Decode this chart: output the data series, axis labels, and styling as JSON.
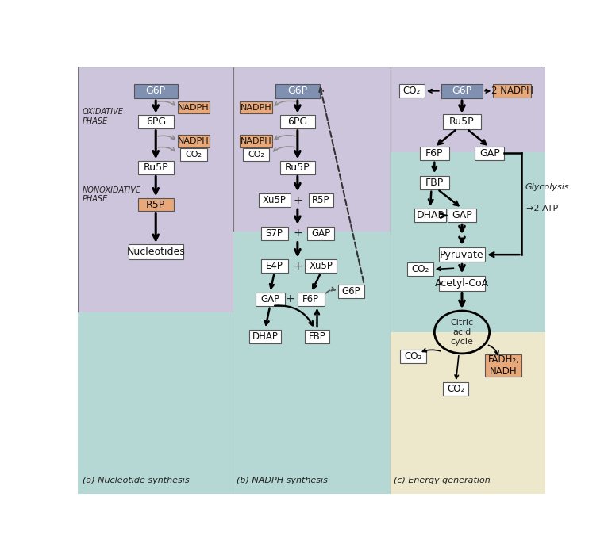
{
  "bg_purple": "#ccc5dc",
  "bg_teal": "#b5d8d5",
  "bg_yellow": "#ede8cc",
  "box_orange": "#e8a87a",
  "box_white": "#ffffff",
  "box_blue_gray": "#8090b0",
  "text_dark": "#222222",
  "border_color": "#666666",
  "panel_a_label": "(a) Nucleotide synthesis",
  "panel_b_label": "(b) NADPH synthesis",
  "panel_c_label": "(c) Energy generation"
}
